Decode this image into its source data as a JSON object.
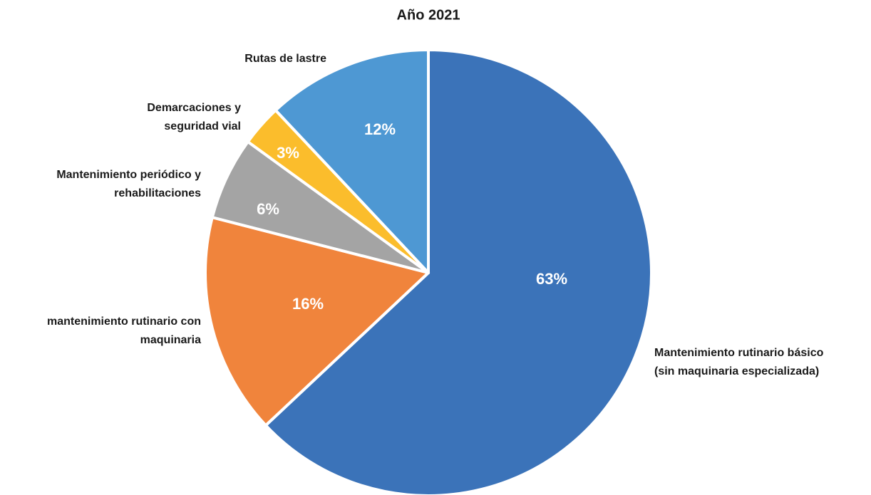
{
  "chart_data": {
    "type": "pie",
    "title": "Año 2021",
    "categories": [
      [
        "Mantenimiento rutinario básico",
        "(sin maquinaria especializada)"
      ],
      [
        "mantenimiento rutinario con",
        "maquinaria"
      ],
      [
        "Mantenimiento periódico y",
        "rehabilitaciones"
      ],
      [
        "Demarcaciones y",
        "seguridad vial"
      ],
      [
        "Rutas de lastre"
      ]
    ],
    "values": [
      63,
      16,
      6,
      3,
      12
    ],
    "value_labels": [
      "63%",
      "16%",
      "6%",
      "3%",
      "12%"
    ],
    "colors": [
      "#3b73b9",
      "#f0843c",
      "#a4a4a4",
      "#fbbd2c",
      "#4e98d3"
    ]
  }
}
